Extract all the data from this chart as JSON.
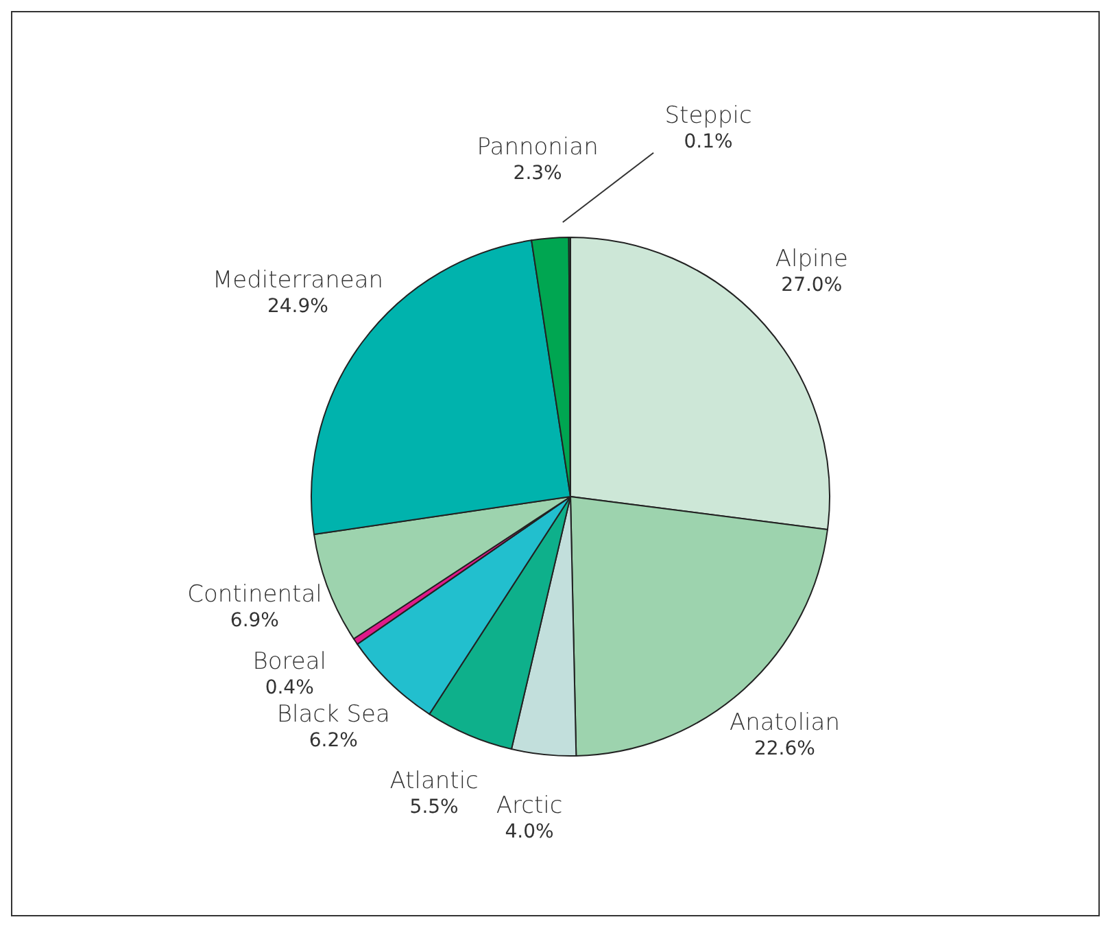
{
  "chart_data": {
    "type": "pie",
    "categories": [
      "Alpine",
      "Anatolian",
      "Arctic",
      "Atlantic",
      "Black Sea",
      "Boreal",
      "Continental",
      "Mediterranean",
      "Pannonian",
      "Steppic"
    ],
    "values": [
      27.0,
      22.6,
      4.0,
      5.5,
      6.2,
      0.4,
      6.9,
      24.9,
      2.3,
      0.1
    ],
    "value_labels": [
      "27.0%",
      "22.6%",
      "4.0%",
      "5.5%",
      "6.2%",
      "0.4%",
      "6.9%",
      "24.9%",
      "2.3%",
      "0.1%"
    ],
    "colors": [
      "#cde7d7",
      "#9dd3ae",
      "#c2dfdc",
      "#0eb08b",
      "#22bfce",
      "#e0198a",
      "#9dd3ae",
      "#00b3ad",
      "#00a651",
      "#00a651"
    ]
  }
}
